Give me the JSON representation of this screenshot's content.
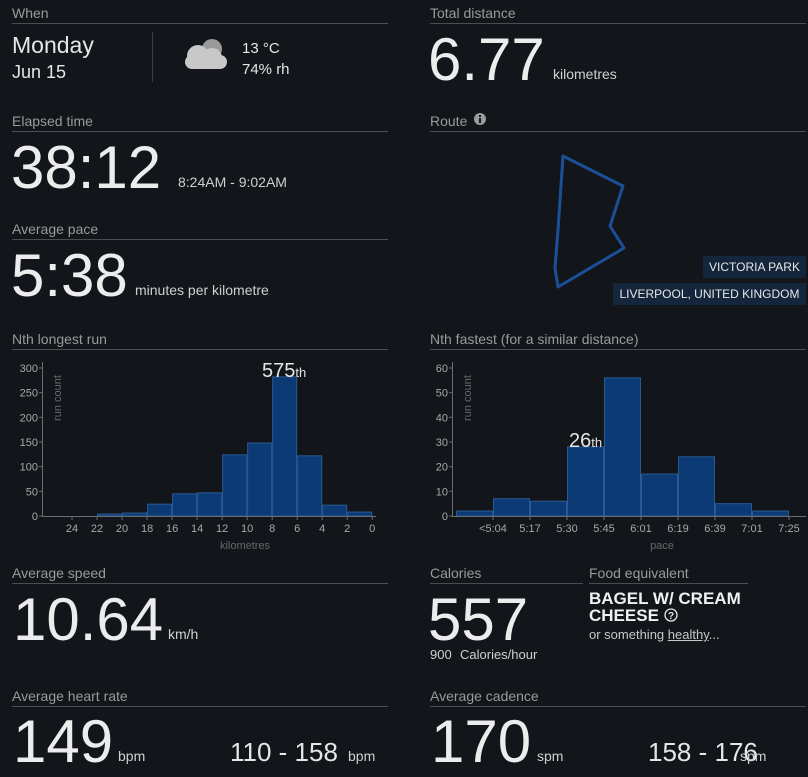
{
  "when": {
    "label": "When",
    "day": "Monday",
    "date": "Jun 15",
    "temperature": "13 °C",
    "humidity": "74% rh"
  },
  "total_distance": {
    "label": "Total distance",
    "value": "6.77",
    "unit": "kilometres"
  },
  "elapsed_time": {
    "label": "Elapsed time",
    "value": "38:12",
    "range": "8:24AM - 9:02AM"
  },
  "route": {
    "label": "Route",
    "place": "VICTORIA PARK",
    "region": "LIVERPOOL, UNITED KINGDOM"
  },
  "average_pace": {
    "label": "Average pace",
    "value": "5:38",
    "unit": "minutes per kilometre"
  },
  "chart_data": [
    {
      "type": "histogram",
      "title": "Nth longest run",
      "y_label": "run count",
      "x_label": "kilometres",
      "bins": [
        22,
        20,
        18,
        16,
        14,
        12,
        10,
        8,
        6,
        4,
        2,
        0
      ],
      "values": [
        4,
        6,
        24,
        45,
        47,
        124,
        148,
        282,
        122,
        22,
        8
      ],
      "xlim": [
        26.4,
        -0.3
      ],
      "xticks": [
        24,
        22,
        20,
        18,
        16,
        14,
        12,
        10,
        8,
        6,
        4,
        2,
        0
      ],
      "ylim": [
        0,
        300
      ],
      "yticks": [
        0,
        50,
        100,
        150,
        200,
        250,
        300
      ],
      "color": "#0b3a74",
      "annotation": {
        "rank": "575",
        "suffix": "th"
      }
    },
    {
      "type": "histogram",
      "title": "Nth fastest (for a similar distance)",
      "y_label": "run count",
      "x_label": "pace",
      "bins": [
        null,
        "<5:04",
        "5:17",
        "5:30",
        "5:45",
        "6:01",
        "6:19",
        "6:39",
        "7:01",
        "7:25"
      ],
      "values": [
        2,
        7,
        6,
        28,
        56,
        17,
        24,
        5,
        2
      ],
      "ylim": [
        0,
        60
      ],
      "yticks": [
        0,
        10,
        20,
        30,
        40,
        50,
        60
      ],
      "color": "#0b3a74",
      "annotation": {
        "rank": "26",
        "suffix": "th"
      }
    }
  ],
  "average_speed": {
    "label": "Average speed",
    "value": "10.64",
    "unit": "km/h"
  },
  "calories": {
    "label": "Calories",
    "value": "557",
    "rate": "900",
    "rate_unit": "Calories/hour"
  },
  "food_equivalent": {
    "label": "Food equivalent",
    "name": "BAGEL W/ CREAM CHEESE",
    "prefix": "or something",
    "link": "healthy",
    "suffix": "..."
  },
  "average_heart_rate": {
    "label": "Average heart rate",
    "value": "149",
    "unit": "bpm",
    "range": "110 - 158",
    "range_unit": "bpm"
  },
  "average_cadence": {
    "label": "Average cadence",
    "value": "170",
    "unit": "spm",
    "range": "158 - 176",
    "range_unit": "spm"
  }
}
